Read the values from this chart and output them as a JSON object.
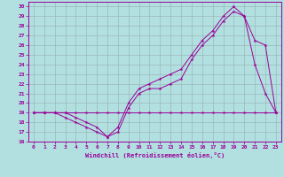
{
  "xlabel": "Windchill (Refroidissement éolien,°C)",
  "bg_color": "#b2e0e0",
  "line_color": "#990099",
  "grid_color": "#9ab8b8",
  "xlim": [
    -0.5,
    23.5
  ],
  "ylim": [
    16,
    30.5
  ],
  "xticks": [
    0,
    1,
    2,
    3,
    4,
    5,
    6,
    7,
    8,
    9,
    10,
    11,
    12,
    13,
    14,
    15,
    16,
    17,
    18,
    19,
    20,
    21,
    22,
    23
  ],
  "yticks": [
    16,
    17,
    18,
    19,
    20,
    21,
    22,
    23,
    24,
    25,
    26,
    27,
    28,
    29,
    30
  ],
  "line1_x": [
    0,
    1,
    2,
    3,
    4,
    5,
    6,
    7,
    8,
    9,
    10,
    11,
    12,
    13,
    14,
    15,
    16,
    17,
    18,
    19,
    20,
    21,
    22,
    23
  ],
  "line1_y": [
    19,
    19,
    19,
    19,
    18.5,
    18,
    17.5,
    16.5,
    17.5,
    20,
    21.5,
    22,
    22.5,
    23,
    23.5,
    25,
    26.5,
    27.5,
    29,
    30,
    29,
    24,
    21,
    19
  ],
  "line2_x": [
    0,
    1,
    2,
    3,
    4,
    5,
    6,
    7,
    8,
    9,
    10,
    11,
    12,
    13,
    14,
    15,
    16,
    17,
    18,
    19,
    20,
    21,
    22,
    23
  ],
  "line2_y": [
    19,
    19,
    19,
    18.5,
    18,
    17.5,
    17,
    16.5,
    17,
    19.5,
    21,
    21.5,
    21.5,
    22,
    22.5,
    24.5,
    26,
    27,
    28.5,
    29.5,
    29,
    26.5,
    26,
    19
  ],
  "line3_x": [
    0,
    1,
    2,
    3,
    4,
    5,
    6,
    7,
    8,
    9,
    10,
    11,
    12,
    13,
    14,
    15,
    16,
    17,
    18,
    19,
    20,
    21,
    22,
    23
  ],
  "line3_y": [
    19,
    19,
    19,
    19,
    19,
    19,
    19,
    19,
    19,
    19,
    19,
    19,
    19,
    19,
    19,
    19,
    19,
    19,
    19,
    19,
    19,
    19,
    19,
    19
  ]
}
